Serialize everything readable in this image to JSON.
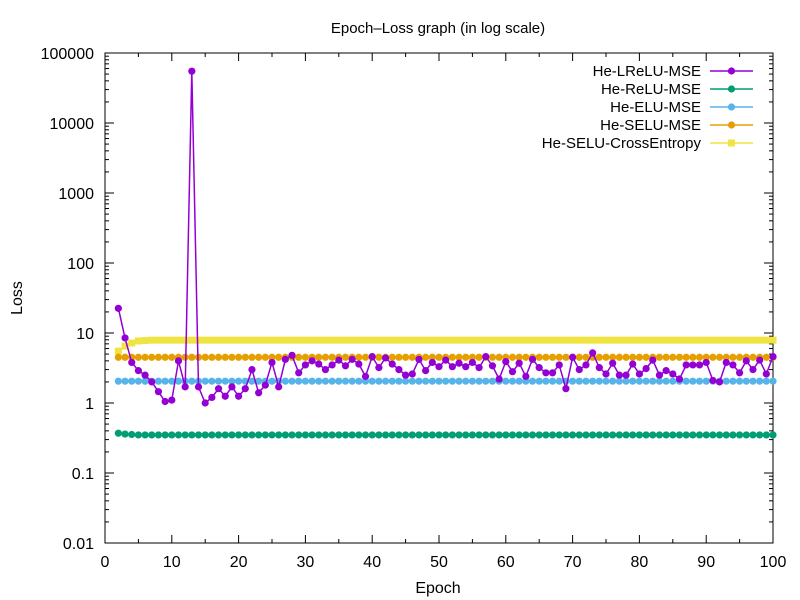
{
  "chart_data": {
    "type": "line",
    "title": "Epoch–Loss graph (in log scale)",
    "xlabel": "Epoch",
    "ylabel": "Loss",
    "xlim": [
      0,
      100
    ],
    "ylim": [
      0.01,
      100000
    ],
    "yscale": "log",
    "grid": false,
    "legend_position": "top-right",
    "x_ticks": [
      0,
      10,
      20,
      30,
      40,
      50,
      60,
      70,
      80,
      90,
      100
    ],
    "x_tick_labels": [
      "0",
      "10",
      "20",
      "30",
      "40",
      "50",
      "60",
      "70",
      "80",
      "90",
      "100"
    ],
    "y_ticks": [
      0.01,
      0.1,
      1,
      10,
      100,
      1000,
      10000,
      100000
    ],
    "y_tick_labels": [
      "0.01",
      "0.1",
      "1",
      "10",
      "100",
      "1000",
      "10000",
      "100000"
    ],
    "x": [
      2,
      3,
      4,
      5,
      6,
      7,
      8,
      9,
      10,
      11,
      12,
      13,
      14,
      15,
      16,
      17,
      18,
      19,
      20,
      21,
      22,
      23,
      24,
      25,
      26,
      27,
      28,
      29,
      30,
      31,
      32,
      33,
      34,
      35,
      36,
      37,
      38,
      39,
      40,
      41,
      42,
      43,
      44,
      45,
      46,
      47,
      48,
      49,
      50,
      51,
      52,
      53,
      54,
      55,
      56,
      57,
      58,
      59,
      60,
      61,
      62,
      63,
      64,
      65,
      66,
      67,
      68,
      69,
      70,
      71,
      72,
      73,
      74,
      75,
      76,
      77,
      78,
      79,
      80,
      81,
      82,
      83,
      84,
      85,
      86,
      87,
      88,
      89,
      90,
      91,
      92,
      93,
      94,
      95,
      96,
      97,
      98,
      99,
      100
    ],
    "series": [
      {
        "name": "He-LReLU-MSE",
        "color": "#9400d3",
        "marker": "circle",
        "values": [
          22.5,
          8.5,
          3.8,
          2.9,
          2.5,
          2.0,
          1.45,
          1.05,
          1.1,
          4.0,
          1.7,
          55000,
          1.7,
          1.0,
          1.2,
          1.6,
          1.25,
          1.7,
          1.25,
          1.6,
          3.0,
          1.4,
          1.8,
          3.8,
          1.7,
          4.2,
          4.8,
          2.7,
          3.5,
          4.0,
          3.6,
          3.0,
          3.5,
          4.1,
          3.4,
          4.2,
          3.6,
          2.4,
          4.6,
          3.2,
          4.4,
          3.6,
          3.0,
          2.5,
          2.6,
          4.2,
          2.9,
          3.8,
          3.3,
          4.1,
          3.3,
          3.7,
          3.3,
          3.8,
          3.2,
          4.6,
          3.4,
          2.2,
          3.9,
          2.8,
          3.7,
          2.4,
          4.2,
          3.2,
          2.7,
          2.7,
          3.5,
          1.6,
          4.5,
          3.0,
          3.5,
          5.2,
          3.2,
          2.6,
          3.7,
          2.5,
          2.5,
          3.6,
          2.6,
          3.1,
          4.1,
          2.5,
          2.9,
          2.6,
          2.2,
          3.5,
          3.5,
          3.5,
          3.8,
          2.1,
          2.0,
          3.8,
          3.5,
          2.7,
          4.0,
          3.0,
          4.1,
          2.6,
          4.6
        ]
      },
      {
        "name": "He-ReLU-MSE",
        "color": "#009e73",
        "marker": "circle",
        "values": [
          0.37,
          0.36,
          0.355,
          0.35,
          0.35,
          0.35,
          0.35,
          0.35,
          0.35,
          0.35,
          0.35,
          0.35,
          0.35,
          0.35,
          0.35,
          0.35,
          0.35,
          0.35,
          0.35,
          0.35,
          0.35,
          0.35,
          0.35,
          0.35,
          0.35,
          0.35,
          0.35,
          0.35,
          0.35,
          0.35,
          0.35,
          0.35,
          0.35,
          0.35,
          0.35,
          0.35,
          0.35,
          0.35,
          0.35,
          0.35,
          0.35,
          0.35,
          0.35,
          0.35,
          0.35,
          0.35,
          0.35,
          0.35,
          0.35,
          0.35,
          0.35,
          0.35,
          0.35,
          0.35,
          0.35,
          0.35,
          0.35,
          0.35,
          0.35,
          0.35,
          0.35,
          0.35,
          0.35,
          0.35,
          0.35,
          0.35,
          0.35,
          0.35,
          0.35,
          0.35,
          0.35,
          0.35,
          0.35,
          0.35,
          0.35,
          0.35,
          0.35,
          0.35,
          0.35,
          0.35,
          0.35,
          0.35,
          0.35,
          0.35,
          0.35,
          0.35,
          0.35,
          0.35,
          0.35,
          0.35,
          0.35,
          0.35,
          0.35,
          0.35,
          0.35,
          0.35,
          0.35,
          0.35,
          0.35
        ]
      },
      {
        "name": "He-ELU-MSE",
        "color": "#56b4e9",
        "marker": "circle",
        "values": [
          2.05,
          2.05,
          2.05,
          2.05,
          2.05,
          2.05,
          2.05,
          2.05,
          2.05,
          2.05,
          2.05,
          2.05,
          2.05,
          2.05,
          2.05,
          2.05,
          2.05,
          2.05,
          2.05,
          2.05,
          2.05,
          2.05,
          2.05,
          2.05,
          2.05,
          2.05,
          2.05,
          2.05,
          2.05,
          2.05,
          2.05,
          2.05,
          2.05,
          2.05,
          2.05,
          2.05,
          2.05,
          2.05,
          2.05,
          2.05,
          2.05,
          2.05,
          2.05,
          2.05,
          2.05,
          2.05,
          2.05,
          2.05,
          2.05,
          2.05,
          2.05,
          2.05,
          2.05,
          2.05,
          2.05,
          2.05,
          2.05,
          2.05,
          2.05,
          2.05,
          2.05,
          2.05,
          2.05,
          2.05,
          2.05,
          2.05,
          2.05,
          2.05,
          2.05,
          2.05,
          2.05,
          2.05,
          2.05,
          2.05,
          2.05,
          2.05,
          2.05,
          2.05,
          2.05,
          2.05,
          2.05,
          2.05,
          2.05,
          2.05,
          2.05,
          2.05,
          2.05,
          2.05,
          2.05,
          2.05,
          2.05,
          2.05,
          2.05,
          2.05,
          2.05,
          2.05,
          2.05,
          2.05,
          2.05
        ]
      },
      {
        "name": "He-SELU-MSE",
        "color": "#e69f00",
        "marker": "circle",
        "values": [
          4.5,
          4.5,
          4.5,
          4.5,
          4.5,
          4.5,
          4.5,
          4.5,
          4.5,
          4.5,
          4.5,
          4.5,
          4.5,
          4.5,
          4.5,
          4.5,
          4.5,
          4.5,
          4.5,
          4.5,
          4.5,
          4.5,
          4.5,
          4.5,
          4.5,
          4.5,
          4.5,
          4.5,
          4.5,
          4.5,
          4.5,
          4.5,
          4.5,
          4.5,
          4.5,
          4.5,
          4.5,
          4.5,
          4.5,
          4.5,
          4.5,
          4.5,
          4.5,
          4.5,
          4.5,
          4.5,
          4.5,
          4.5,
          4.5,
          4.5,
          4.5,
          4.5,
          4.5,
          4.5,
          4.5,
          4.5,
          4.5,
          4.5,
          4.5,
          4.5,
          4.5,
          4.5,
          4.5,
          4.5,
          4.5,
          4.5,
          4.5,
          4.5,
          4.5,
          4.5,
          4.5,
          4.5,
          4.5,
          4.5,
          4.5,
          4.5,
          4.5,
          4.5,
          4.5,
          4.5,
          4.5,
          4.5,
          4.5,
          4.5,
          4.5,
          4.5,
          4.5,
          4.5,
          4.5,
          4.5,
          4.5,
          4.5,
          4.5,
          4.5,
          4.5,
          4.5,
          4.5,
          4.5,
          4.5
        ]
      },
      {
        "name": "He-SELU-CrossEntropy",
        "color": "#f0e442",
        "marker": "square",
        "values": [
          5.5,
          6.5,
          7.2,
          7.7,
          7.8,
          7.9,
          7.9,
          7.9,
          7.9,
          7.9,
          7.9,
          7.9,
          7.9,
          7.9,
          7.9,
          7.9,
          7.9,
          7.9,
          7.9,
          7.9,
          7.9,
          7.9,
          7.9,
          7.9,
          7.9,
          7.9,
          7.9,
          7.9,
          7.9,
          7.9,
          7.9,
          7.9,
          7.9,
          7.9,
          7.9,
          7.9,
          7.9,
          7.9,
          7.9,
          7.9,
          7.9,
          7.9,
          7.9,
          7.9,
          7.9,
          7.9,
          7.9,
          7.9,
          7.9,
          7.9,
          7.9,
          7.9,
          7.9,
          7.9,
          7.9,
          7.9,
          7.9,
          7.9,
          7.9,
          7.9,
          7.9,
          7.9,
          7.9,
          7.9,
          7.9,
          7.9,
          7.9,
          7.9,
          7.9,
          7.9,
          7.9,
          7.9,
          7.9,
          7.9,
          7.9,
          7.9,
          7.9,
          7.9,
          7.9,
          7.9,
          7.9,
          7.9,
          7.9,
          7.9,
          7.9,
          7.9,
          7.9,
          7.9,
          7.9,
          7.9,
          7.9,
          7.9,
          7.9,
          7.9,
          7.9,
          7.9,
          7.9,
          7.9,
          7.9
        ]
      }
    ]
  }
}
